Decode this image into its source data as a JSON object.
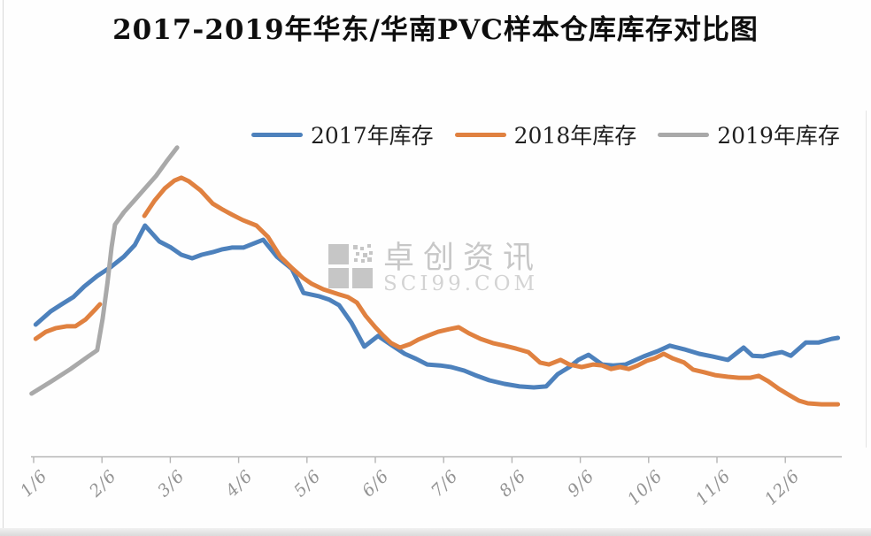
{
  "title": "2017-2019年华东/华南PVC样本仓库库存对比图",
  "legend": {
    "items": [
      {
        "label": "2017年库存",
        "color": "#4d81bc"
      },
      {
        "label": "2018年库存",
        "color": "#e08140"
      },
      {
        "label": "2019年库存",
        "color": "#a9a9a9"
      }
    ]
  },
  "watermark": {
    "brand": "卓创资讯",
    "site": "SCI99.COM",
    "logo_color": "#c6c6c6"
  },
  "x_axis": {
    "tick_labels": [
      "1/6",
      "2/6",
      "3/6",
      "4/6",
      "5/6",
      "6/6",
      "7/6",
      "8/6",
      "9/6",
      "10/6",
      "11/6",
      "12/6"
    ],
    "line_color": "#b5b5b5"
  },
  "y_axis": {
    "labels_visible": false,
    "gridlines": false
  },
  "chart_data": {
    "type": "line",
    "title": "2017-2019年华东/华南PVC样本仓库库存对比图",
    "xlabel": "",
    "ylabel": "",
    "x_unit": "date, weekly points; ticks on the 6th of each month (M/6)",
    "y_unit": "inventory level, relative index 0-100 (no numeric axis labels shown in source)",
    "x_tick_labels": [
      "1/6",
      "2/6",
      "3/6",
      "4/6",
      "5/6",
      "6/6",
      "7/6",
      "8/6",
      "9/6",
      "10/6",
      "11/6",
      "12/6"
    ],
    "xlim_months": [
      0.9,
      12.9
    ],
    "ylim": [
      0,
      100
    ],
    "grid": false,
    "legend_position": "top",
    "series": [
      {
        "name": "2017年库存",
        "color": "#4d81bc",
        "segments": [
          [
            [
              1.03,
              40.7
            ],
            [
              1.25,
              44.8
            ],
            [
              1.41,
              47.0
            ],
            [
              1.58,
              49.2
            ],
            [
              1.74,
              52.5
            ],
            [
              1.93,
              55.7
            ],
            [
              2.13,
              58.5
            ],
            [
              2.32,
              61.7
            ],
            [
              2.48,
              65.3
            ],
            [
              2.63,
              71.3
            ],
            [
              2.84,
              66.4
            ],
            [
              3.01,
              64.5
            ],
            [
              3.16,
              62.3
            ],
            [
              3.32,
              61.2
            ],
            [
              3.46,
              62.3
            ],
            [
              3.62,
              63.1
            ],
            [
              3.75,
              63.9
            ],
            [
              3.9,
              64.5
            ],
            [
              4.07,
              64.5
            ],
            [
              4.2,
              65.6
            ],
            [
              4.36,
              66.9
            ],
            [
              4.56,
              61.7
            ],
            [
              4.78,
              57.9
            ],
            [
              4.95,
              50.5
            ],
            [
              5.17,
              49.5
            ],
            [
              5.33,
              48.4
            ],
            [
              5.47,
              46.7
            ],
            [
              5.65,
              41.3
            ],
            [
              5.84,
              33.9
            ],
            [
              6.04,
              37.2
            ],
            [
              6.25,
              34.2
            ],
            [
              6.43,
              31.7
            ],
            [
              6.6,
              30.1
            ],
            [
              6.76,
              28.4
            ],
            [
              6.95,
              28.1
            ],
            [
              7.11,
              27.6
            ],
            [
              7.3,
              26.5
            ],
            [
              7.46,
              25.1
            ],
            [
              7.67,
              23.5
            ],
            [
              7.89,
              22.4
            ],
            [
              8.11,
              21.6
            ],
            [
              8.32,
              21.3
            ],
            [
              8.5,
              21.6
            ],
            [
              8.67,
              25.4
            ],
            [
              8.84,
              27.6
            ],
            [
              8.97,
              29.8
            ],
            [
              9.12,
              31.4
            ],
            [
              9.32,
              28.4
            ],
            [
              9.48,
              28.1
            ],
            [
              9.66,
              28.4
            ],
            [
              9.93,
              30.9
            ],
            [
              10.13,
              32.5
            ],
            [
              10.31,
              34.2
            ],
            [
              10.52,
              33.1
            ],
            [
              10.74,
              31.7
            ],
            [
              10.93,
              30.9
            ],
            [
              11.16,
              29.8
            ],
            [
              11.39,
              33.6
            ],
            [
              11.52,
              31.1
            ],
            [
              11.67,
              30.9
            ],
            [
              11.82,
              31.7
            ],
            [
              11.95,
              32.2
            ],
            [
              12.08,
              31.1
            ],
            [
              12.3,
              35.2
            ],
            [
              12.49,
              35.2
            ],
            [
              12.68,
              36.3
            ],
            [
              12.77,
              36.6
            ]
          ]
        ]
      },
      {
        "name": "2018年库存",
        "color": "#e08140",
        "segments": [
          [
            [
              1.03,
              36.3
            ],
            [
              1.18,
              38.5
            ],
            [
              1.32,
              39.6
            ],
            [
              1.48,
              40.2
            ],
            [
              1.61,
              40.2
            ],
            [
              1.76,
              42.3
            ],
            [
              1.91,
              45.6
            ],
            [
              1.97,
              47.0
            ]
          ],
          [
            [
              2.62,
              74.3
            ],
            [
              2.77,
              79.0
            ],
            [
              2.92,
              82.8
            ],
            [
              3.06,
              85.2
            ],
            [
              3.16,
              86.1
            ],
            [
              3.27,
              85.0
            ],
            [
              3.44,
              82.2
            ],
            [
              3.62,
              78.1
            ],
            [
              3.77,
              76.2
            ],
            [
              3.91,
              74.6
            ],
            [
              4.06,
              73.0
            ],
            [
              4.26,
              71.3
            ],
            [
              4.43,
              67.8
            ],
            [
              4.61,
              61.7
            ],
            [
              4.78,
              58.2
            ],
            [
              4.94,
              55.2
            ],
            [
              5.07,
              53.3
            ],
            [
              5.24,
              51.6
            ],
            [
              5.43,
              50.3
            ],
            [
              5.6,
              49.2
            ],
            [
              5.73,
              47.5
            ],
            [
              5.86,
              43.4
            ],
            [
              6.0,
              39.9
            ],
            [
              6.12,
              37.2
            ],
            [
              6.23,
              35.0
            ],
            [
              6.36,
              33.6
            ],
            [
              6.51,
              34.7
            ],
            [
              6.63,
              36.1
            ],
            [
              6.76,
              37.2
            ],
            [
              6.92,
              38.5
            ],
            [
              7.08,
              39.3
            ],
            [
              7.22,
              39.9
            ],
            [
              7.37,
              38.0
            ],
            [
              7.54,
              36.3
            ],
            [
              7.72,
              35.0
            ],
            [
              7.89,
              34.2
            ],
            [
              8.06,
              33.3
            ],
            [
              8.24,
              32.2
            ],
            [
              8.41,
              29.0
            ],
            [
              8.54,
              28.4
            ],
            [
              8.71,
              29.8
            ],
            [
              8.84,
              28.4
            ],
            [
              9.02,
              27.6
            ],
            [
              9.19,
              28.4
            ],
            [
              9.32,
              28.1
            ],
            [
              9.45,
              27.0
            ],
            [
              9.58,
              27.6
            ],
            [
              9.71,
              27.0
            ],
            [
              9.84,
              28.1
            ],
            [
              9.97,
              29.5
            ],
            [
              10.09,
              30.3
            ],
            [
              10.22,
              31.7
            ],
            [
              10.35,
              30.3
            ],
            [
              10.52,
              29.0
            ],
            [
              10.65,
              26.8
            ],
            [
              10.81,
              26.0
            ],
            [
              10.97,
              25.1
            ],
            [
              11.16,
              24.6
            ],
            [
              11.32,
              24.3
            ],
            [
              11.49,
              24.3
            ],
            [
              11.61,
              24.9
            ],
            [
              11.75,
              23.2
            ],
            [
              11.91,
              20.8
            ],
            [
              12.06,
              18.9
            ],
            [
              12.2,
              17.2
            ],
            [
              12.33,
              16.4
            ],
            [
              12.53,
              16.1
            ],
            [
              12.77,
              16.1
            ]
          ]
        ]
      },
      {
        "name": "2019年库存",
        "color": "#a9a9a9",
        "segments": [
          [
            [
              0.97,
              19.4
            ],
            [
              1.26,
              23.2
            ],
            [
              1.54,
              27.0
            ],
            [
              1.8,
              30.9
            ],
            [
              1.93,
              32.8
            ],
            [
              2.01,
              42.6
            ],
            [
              2.08,
              53.6
            ],
            [
              2.14,
              64.5
            ],
            [
              2.19,
              71.6
            ],
            [
              2.32,
              75.4
            ],
            [
              2.48,
              79.2
            ],
            [
              2.63,
              82.8
            ],
            [
              2.79,
              86.6
            ],
            [
              2.94,
              91.0
            ],
            [
              3.1,
              95.4
            ]
          ]
        ]
      }
    ]
  }
}
